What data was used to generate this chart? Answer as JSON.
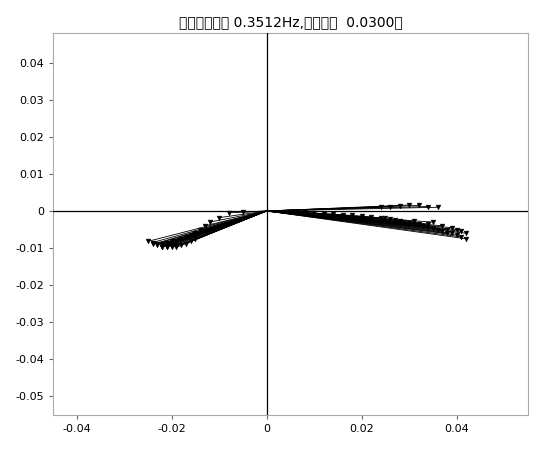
{
  "title": "模态图（频率 0.3512Hz,阻尼比：  0.0300）",
  "xlim": [
    -0.045,
    0.055
  ],
  "ylim": [
    -0.055,
    0.048
  ],
  "xticks": [
    -0.04,
    -0.02,
    0,
    0.02,
    0.04
  ],
  "yticks": [
    -0.05,
    -0.04,
    -0.03,
    -0.02,
    -0.01,
    0,
    0.01,
    0.02,
    0.03,
    0.04
  ],
  "background_color": "#ffffff",
  "line_color": "#000000",
  "marker_color": "#000000",
  "figsize": [
    5.43,
    4.49
  ],
  "dpi": 100,
  "right_cluster": [
    [
      0.005,
      -0.0002
    ],
    [
      0.008,
      -0.0004
    ],
    [
      0.01,
      -0.0006
    ],
    [
      0.012,
      -0.0007
    ],
    [
      0.014,
      -0.0009
    ],
    [
      0.016,
      -0.001
    ],
    [
      0.018,
      -0.0012
    ],
    [
      0.02,
      -0.0014
    ],
    [
      0.022,
      -0.0016
    ],
    [
      0.024,
      -0.0018
    ],
    [
      0.025,
      -0.002
    ],
    [
      0.026,
      -0.0022
    ],
    [
      0.027,
      -0.0024
    ],
    [
      0.028,
      -0.0026
    ],
    [
      0.029,
      -0.003
    ],
    [
      0.03,
      -0.0032
    ],
    [
      0.031,
      -0.0034
    ],
    [
      0.031,
      -0.0028
    ],
    [
      0.032,
      -0.0036
    ],
    [
      0.033,
      -0.004
    ],
    [
      0.034,
      -0.0042
    ],
    [
      0.034,
      -0.0035
    ],
    [
      0.035,
      -0.0045
    ],
    [
      0.035,
      -0.003
    ],
    [
      0.036,
      -0.005
    ],
    [
      0.037,
      -0.0055
    ],
    [
      0.037,
      -0.004
    ],
    [
      0.038,
      -0.006
    ],
    [
      0.038,
      -0.005
    ],
    [
      0.039,
      -0.006
    ],
    [
      0.039,
      -0.0045
    ],
    [
      0.04,
      -0.0065
    ],
    [
      0.04,
      -0.005
    ],
    [
      0.041,
      -0.007
    ],
    [
      0.041,
      -0.0055
    ],
    [
      0.042,
      -0.0075
    ],
    [
      0.042,
      -0.006
    ],
    [
      0.024,
      0.001
    ],
    [
      0.026,
      0.0012
    ],
    [
      0.028,
      0.0014
    ],
    [
      0.03,
      0.0016
    ],
    [
      0.032,
      0.0015
    ],
    [
      0.034,
      0.0012
    ],
    [
      0.036,
      0.001
    ]
  ],
  "left_cluster": [
    [
      -0.005,
      -0.0003
    ],
    [
      -0.008,
      -0.0005
    ],
    [
      -0.01,
      -0.0018
    ],
    [
      -0.012,
      -0.003
    ],
    [
      -0.013,
      -0.004
    ],
    [
      -0.014,
      -0.005
    ],
    [
      -0.015,
      -0.006
    ],
    [
      -0.016,
      -0.0065
    ],
    [
      -0.017,
      -0.007
    ],
    [
      -0.018,
      -0.0075
    ],
    [
      -0.019,
      -0.008
    ],
    [
      -0.02,
      -0.0082
    ],
    [
      -0.02,
      -0.0088
    ],
    [
      -0.021,
      -0.0085
    ],
    [
      -0.021,
      -0.009
    ],
    [
      -0.021,
      -0.0094
    ],
    [
      -0.022,
      -0.0088
    ],
    [
      -0.022,
      -0.0092
    ],
    [
      -0.022,
      -0.0096
    ],
    [
      -0.022,
      -0.0098
    ],
    [
      -0.021,
      -0.0096
    ],
    [
      -0.021,
      -0.0098
    ],
    [
      -0.02,
      -0.0095
    ],
    [
      -0.02,
      -0.0098
    ],
    [
      -0.019,
      -0.0095
    ],
    [
      -0.019,
      -0.0098
    ],
    [
      -0.018,
      -0.0092
    ],
    [
      -0.017,
      -0.0088
    ],
    [
      -0.016,
      -0.0082
    ],
    [
      -0.015,
      -0.0075
    ],
    [
      -0.023,
      -0.0088
    ],
    [
      -0.023,
      -0.0092
    ],
    [
      -0.024,
      -0.0085
    ],
    [
      -0.024,
      -0.009
    ],
    [
      -0.025,
      -0.0082
    ]
  ]
}
